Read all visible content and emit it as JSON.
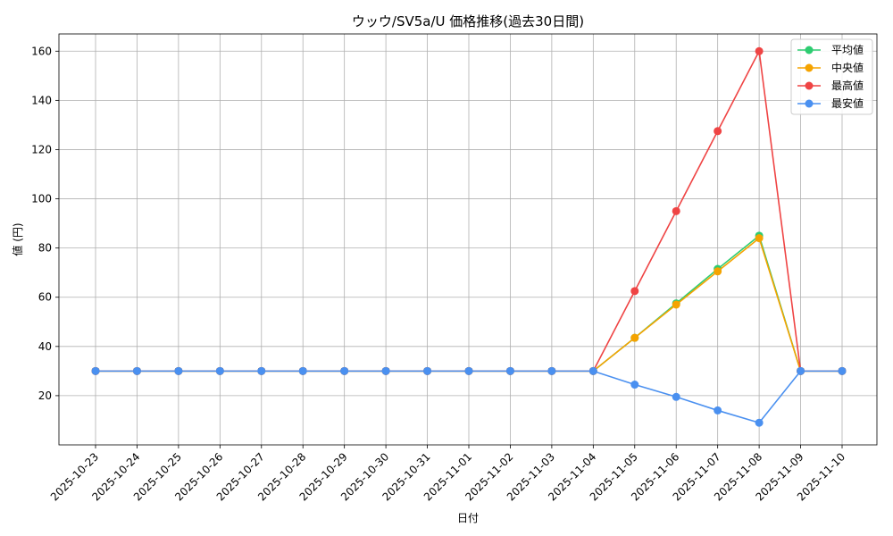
{
  "chart_data": {
    "type": "line",
    "title": "ウッウ/SV5a/U 価格推移(過去30日間)",
    "xlabel": "日付",
    "ylabel": "値 (円)",
    "ylim": [
      0,
      167
    ],
    "yticks": [
      20,
      40,
      60,
      80,
      100,
      120,
      140,
      160
    ],
    "grid": true,
    "legend_position": "top-right",
    "categories": [
      "2025-10-23",
      "2025-10-24",
      "2025-10-25",
      "2025-10-26",
      "2025-10-27",
      "2025-10-28",
      "2025-10-29",
      "2025-10-30",
      "2025-10-31",
      "2025-11-01",
      "2025-11-02",
      "2025-11-03",
      "2025-11-04",
      "2025-11-05",
      "2025-11-06",
      "2025-11-07",
      "2025-11-08",
      "2025-11-09",
      "2025-11-10"
    ],
    "series": [
      {
        "name": "平均値",
        "color": "#2ecc71",
        "values": [
          30,
          30,
          30,
          30,
          30,
          30,
          30,
          30,
          30,
          30,
          30,
          30,
          30,
          43.5,
          57.5,
          71.5,
          85,
          30,
          30
        ]
      },
      {
        "name": "中央値",
        "color": "#f5a300",
        "values": [
          30,
          30,
          30,
          30,
          30,
          30,
          30,
          30,
          30,
          30,
          30,
          30,
          30,
          43.5,
          57,
          70.5,
          84,
          30,
          30
        ]
      },
      {
        "name": "最高値",
        "color": "#ef4444",
        "values": [
          30,
          30,
          30,
          30,
          30,
          30,
          30,
          30,
          30,
          30,
          30,
          30,
          30,
          62.5,
          95,
          127.5,
          160,
          30,
          30
        ]
      },
      {
        "name": "最安値",
        "color": "#4a90f0",
        "values": [
          30,
          30,
          30,
          30,
          30,
          30,
          30,
          30,
          30,
          30,
          30,
          30,
          30,
          24.5,
          19.5,
          14,
          9,
          30,
          30
        ]
      }
    ]
  }
}
